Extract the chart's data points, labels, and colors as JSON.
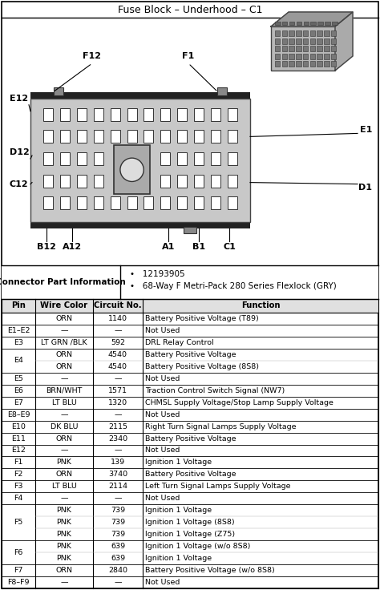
{
  "title": "Fuse Block – Underhood – C1",
  "connector_part_info": {
    "label": "Connector Part Information",
    "bullets": [
      "12193905",
      "68-Way F Metri-Pack 280 Series Flexlock (GRY)"
    ]
  },
  "table_headers": [
    "Pin",
    "Wire Color",
    "Circuit No.",
    "Function"
  ],
  "table_rows": [
    [
      "",
      "ORN",
      "1140",
      "Battery Positive Voltage (T89)"
    ],
    [
      "E1–E2",
      "—",
      "—",
      "Not Used"
    ],
    [
      "E3",
      "LT GRN /BLK",
      "592",
      "DRL Relay Control"
    ],
    [
      "E4",
      "ORN",
      "4540",
      "Battery Positive Voltage"
    ],
    [
      "E4",
      "ORN",
      "4540",
      "Battery Positive Voltage (8S8)"
    ],
    [
      "E5",
      "—",
      "—",
      "Not Used"
    ],
    [
      "E6",
      "BRN/WHT",
      "1571",
      "Traction Control Switch Signal (NW7)"
    ],
    [
      "E7",
      "LT BLU",
      "1320",
      "CHMSL Supply Voltage/Stop Lamp Supply Voltage"
    ],
    [
      "E8–E9",
      "—",
      "—",
      "Not Used"
    ],
    [
      "E10",
      "DK BLU",
      "2115",
      "Right Turn Signal Lamps Supply Voltage"
    ],
    [
      "E11",
      "ORN",
      "2340",
      "Battery Positive Voltage"
    ],
    [
      "E12",
      "—",
      "—",
      "Not Used"
    ],
    [
      "F1",
      "PNK",
      "139",
      "Ignition 1 Voltage"
    ],
    [
      "F2",
      "ORN",
      "3740",
      "Battery Positive Voltage"
    ],
    [
      "F3",
      "LT BLU",
      "2114",
      "Left Turn Signal Lamps Supply Voltage"
    ],
    [
      "F4",
      "—",
      "—",
      "Not Used"
    ],
    [
      "F5",
      "PNK",
      "739",
      "Ignition 1 Voltage"
    ],
    [
      "F5",
      "PNK",
      "739",
      "Ignition 1 Voltage (8S8)"
    ],
    [
      "F5",
      "PNK",
      "739",
      "Ignition 1 Voltage (Z75)"
    ],
    [
      "F6",
      "PNK",
      "639",
      "Ignition 1 Voltage (w/o 8S8)"
    ],
    [
      "F6",
      "PNK",
      "639",
      "Ignition 1 Voltage"
    ],
    [
      "F7",
      "ORN",
      "2840",
      "Battery Positive Voltage (w/o 8S8)"
    ],
    [
      "F8–F9",
      "—",
      "—",
      "Not Used"
    ]
  ],
  "bg_color": "#ffffff"
}
